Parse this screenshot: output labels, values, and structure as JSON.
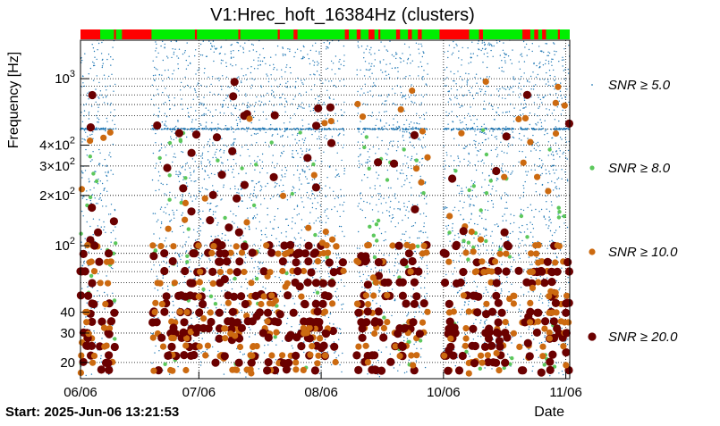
{
  "chart_data": {
    "type": "scatter",
    "title": "V1:Hrec_hoft_16384Hz (clusters)",
    "xlabel": "Date",
    "ylabel": "Frequency [Hz]",
    "start_label": "Start: 2025-Jun-06 13:21:53",
    "x_tick_labels": [
      "06/06",
      "07/06",
      "08/06",
      "10/06",
      "11/06"
    ],
    "x_ticks_days": [
      0,
      30,
      61,
      92,
      123
    ],
    "x_range_days": [
      0,
      124
    ],
    "y_scale": "log",
    "y_range": [
      16,
      1700
    ],
    "y_tick_labels": [
      {
        "value": 20,
        "text": "20"
      },
      {
        "value": 30,
        "text": "30"
      },
      {
        "value": 40,
        "text": "40"
      },
      {
        "value": 100,
        "text": "10²",
        "sup": true,
        "base": "10",
        "exp": "2"
      },
      {
        "value": 200,
        "text": "2×10²",
        "sup": true,
        "base": "2×10",
        "exp": "2"
      },
      {
        "value": 300,
        "text": "3×10²",
        "sup": true,
        "base": "3×10",
        "exp": "2"
      },
      {
        "value": 400,
        "text": "4×10²",
        "sup": true,
        "base": "4×10",
        "exp": "2"
      },
      {
        "value": 1000,
        "text": "10³",
        "sup": true,
        "base": "10",
        "exp": "3"
      }
    ],
    "grid": true,
    "legend": [
      {
        "label": "SNR ≥ 5.0",
        "color": "#1f77b4",
        "size": "tiny"
      },
      {
        "label": "SNR ≥ 8.0",
        "color": "#5cc85c",
        "size": "small"
      },
      {
        "label": "SNR ≥ 10.0",
        "color": "#cc6a10",
        "size": "medium"
      },
      {
        "label": "SNR ≥ 20.0",
        "color": "#6b0000",
        "size": "large"
      }
    ],
    "segments": {
      "on_color": "#00ee00",
      "off_color": "#ff0000",
      "off_ranges_days": [
        [
          0,
          5
        ],
        [
          8.5,
          9
        ],
        [
          10.5,
          18
        ],
        [
          29,
          29.5
        ],
        [
          40,
          40.5
        ],
        [
          50,
          50.5
        ],
        [
          54,
          55
        ],
        [
          67,
          68
        ],
        [
          70,
          71
        ],
        [
          73,
          74.5
        ],
        [
          75.5,
          76
        ],
        [
          80,
          81
        ],
        [
          83,
          84
        ],
        [
          85.5,
          86.5
        ],
        [
          91,
          98.5
        ],
        [
          101,
          102
        ],
        [
          112,
          114
        ],
        [
          115,
          116
        ],
        [
          117,
          118
        ],
        [
          121,
          121.5
        ]
      ]
    },
    "active_days": [
      [
        0,
        9
      ],
      [
        18,
        67
      ],
      [
        70,
        88
      ],
      [
        92,
        110
      ],
      [
        111,
        124
      ]
    ],
    "bands_hz": [
      100,
      90,
      80,
      70,
      60,
      50,
      45,
      40,
      35,
      32,
      30,
      28,
      25,
      22,
      20,
      18
    ]
  }
}
